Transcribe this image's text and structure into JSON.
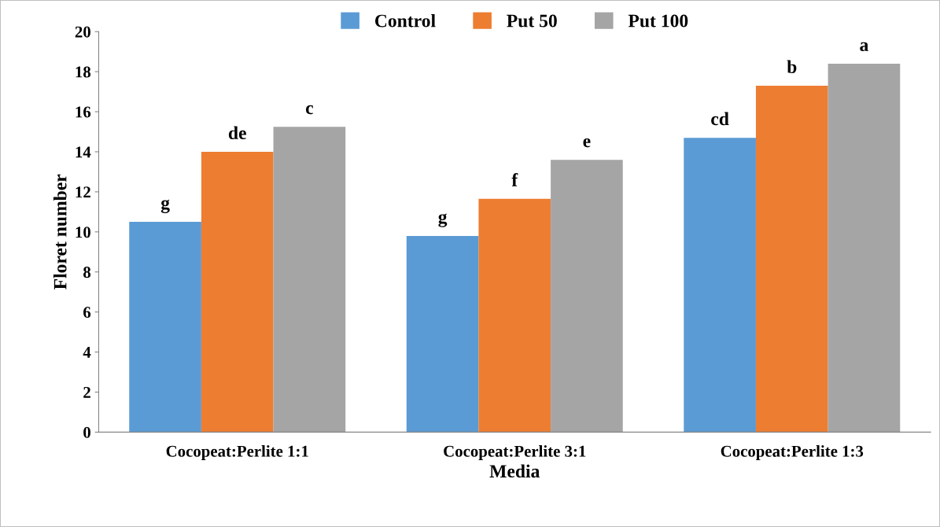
{
  "chart_data": {
    "type": "bar",
    "xlabel": "Media",
    "ylabel": "Floret number",
    "categories": [
      "Cocopeat:Perlite 1:1",
      "Cocopeat:Perlite 3:1",
      "Cocopeat:Perlite 1:3"
    ],
    "series": [
      {
        "name": "Control",
        "color": "#5b9bd5",
        "values": [
          10.5,
          9.8,
          14.7
        ],
        "value_labels": [
          "g",
          "g",
          "cd"
        ]
      },
      {
        "name": "Put 50",
        "color": "#ed7d31",
        "values": [
          14.0,
          11.65,
          17.3
        ],
        "value_labels": [
          "de",
          "f",
          "b"
        ]
      },
      {
        "name": "Put 100",
        "color": "#a5a5a5",
        "values": [
          15.25,
          13.6,
          18.4
        ],
        "value_labels": [
          "c",
          "e",
          "a"
        ]
      }
    ],
    "ylim": [
      0,
      20
    ],
    "yticks": [
      0,
      2,
      4,
      6,
      8,
      10,
      12,
      14,
      16,
      18,
      20
    ],
    "grid": false,
    "legend": "top"
  }
}
